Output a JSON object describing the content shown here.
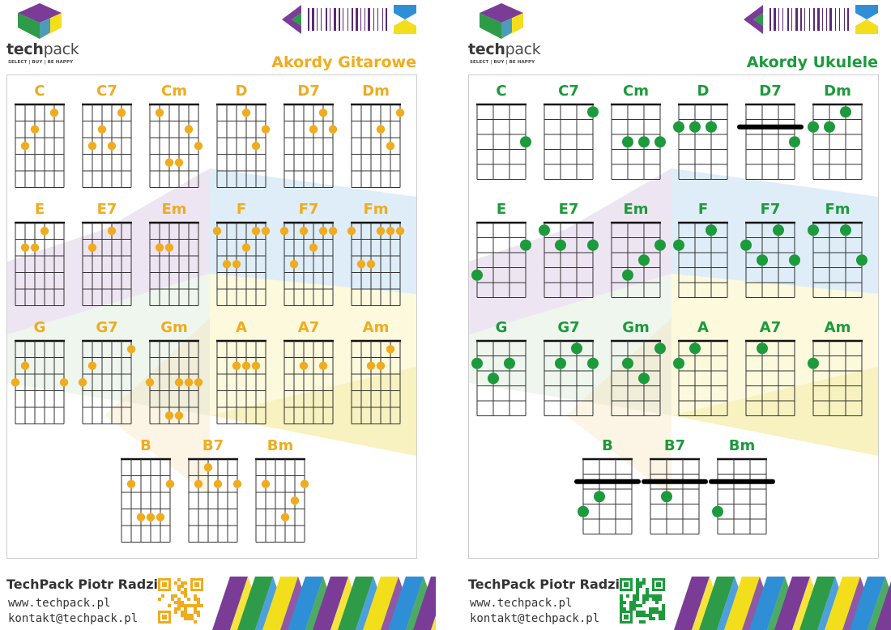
{
  "brand": {
    "logo_name": "techpack",
    "logo_strong": "tech",
    "logo_light": "pack",
    "tagline": "SELECT | BUY | BE HAPPY"
  },
  "colors": {
    "guitar_accent": "#f0ac1e",
    "ukulele_accent": "#1d9a3c",
    "purple": "#7b3c97",
    "green": "#2e9b48",
    "blue": "#2f8fd6",
    "yellow": "#f3de1c"
  },
  "sheets": [
    {
      "title": "Akordy Gitarowe",
      "instrument": "guitar",
      "color": "#f0ac1e",
      "chords": [
        {
          "name": "C",
          "dots": [
            [
              1,
              4
            ],
            [
              2,
              2
            ],
            [
              3,
              1
            ]
          ],
          "barres": []
        },
        {
          "name": "C7",
          "dots": [
            [
              1,
              4
            ],
            [
              2,
              2
            ],
            [
              3,
              1
            ],
            [
              3,
              3
            ]
          ],
          "barres": []
        },
        {
          "name": "Cm",
          "dots": [
            [
              3,
              5
            ],
            [
              4,
              2
            ],
            [
              4,
              3
            ],
            [
              1,
              1
            ],
            [
              2,
              4
            ]
          ],
          "barres": []
        },
        {
          "name": "D",
          "dots": [
            [
              1,
              3
            ],
            [
              2,
              5
            ],
            [
              3,
              4
            ]
          ],
          "barres": []
        },
        {
          "name": "D7",
          "dots": [
            [
              1,
              4
            ],
            [
              2,
              3
            ],
            [
              2,
              5
            ]
          ],
          "barres": []
        },
        {
          "name": "Dm",
          "dots": [
            [
              1,
              5
            ],
            [
              2,
              3
            ],
            [
              3,
              4
            ]
          ],
          "barres": []
        },
        {
          "name": "E",
          "dots": [
            [
              1,
              3
            ],
            [
              2,
              1
            ],
            [
              2,
              2
            ]
          ],
          "barres": []
        },
        {
          "name": "E7",
          "dots": [
            [
              1,
              3
            ],
            [
              2,
              1
            ]
          ],
          "barres": []
        },
        {
          "name": "Em",
          "dots": [
            [
              2,
              1
            ],
            [
              2,
              2
            ]
          ],
          "barres": []
        },
        {
          "name": "F",
          "dots": [
            [
              1,
              0
            ],
            [
              1,
              4
            ],
            [
              1,
              5
            ],
            [
              2,
              3
            ],
            [
              3,
              1
            ],
            [
              3,
              2
            ]
          ],
          "barres": []
        },
        {
          "name": "F7",
          "dots": [
            [
              1,
              0
            ],
            [
              1,
              2
            ],
            [
              1,
              4
            ],
            [
              1,
              5
            ],
            [
              2,
              3
            ],
            [
              3,
              1
            ]
          ],
          "barres": []
        },
        {
          "name": "Fm",
          "dots": [
            [
              1,
              0
            ],
            [
              1,
              3
            ],
            [
              1,
              4
            ],
            [
              1,
              5
            ],
            [
              3,
              1
            ],
            [
              3,
              2
            ]
          ],
          "barres": []
        },
        {
          "name": "G",
          "dots": [
            [
              2,
              1
            ],
            [
              3,
              0
            ],
            [
              3,
              5
            ]
          ],
          "barres": []
        },
        {
          "name": "G7",
          "dots": [
            [
              1,
              5
            ],
            [
              2,
              1
            ],
            [
              3,
              0
            ]
          ],
          "barres": []
        },
        {
          "name": "Gm",
          "dots": [
            [
              3,
              0
            ],
            [
              3,
              3
            ],
            [
              3,
              4
            ],
            [
              3,
              5
            ],
            [
              5,
              2
            ],
            [
              5,
              3
            ]
          ],
          "barres": []
        },
        {
          "name": "A",
          "dots": [
            [
              2,
              2
            ],
            [
              2,
              3
            ],
            [
              2,
              4
            ]
          ],
          "barres": []
        },
        {
          "name": "A7",
          "dots": [
            [
              2,
              2
            ],
            [
              2,
              4
            ]
          ],
          "barres": []
        },
        {
          "name": "Am",
          "dots": [
            [
              1,
              4
            ],
            [
              2,
              2
            ],
            [
              2,
              3
            ]
          ],
          "barres": []
        },
        {
          "name": "B",
          "dots": [
            [
              2,
              1
            ],
            [
              2,
              5
            ],
            [
              4,
              2
            ],
            [
              4,
              3
            ],
            [
              4,
              4
            ]
          ],
          "barres": []
        },
        {
          "name": "B7",
          "dots": [
            [
              1,
              2
            ],
            [
              2,
              1
            ],
            [
              2,
              3
            ],
            [
              2,
              5
            ]
          ],
          "barres": []
        },
        {
          "name": "Bm",
          "dots": [
            [
              2,
              1
            ],
            [
              2,
              5
            ],
            [
              3,
              4
            ],
            [
              4,
              3
            ]
          ],
          "barres": []
        }
      ]
    },
    {
      "title": "Akordy Ukulele",
      "instrument": "ukulele",
      "color": "#1d9a3c",
      "chords": [
        {
          "name": "C",
          "dots": [
            [
              3,
              3
            ]
          ],
          "barres": []
        },
        {
          "name": "C7",
          "dots": [
            [
              1,
              3
            ]
          ],
          "barres": []
        },
        {
          "name": "Cm",
          "dots": [
            [
              3,
              1
            ],
            [
              3,
              2
            ],
            [
              3,
              3
            ]
          ],
          "barres": []
        },
        {
          "name": "D",
          "dots": [
            [
              2,
              0
            ],
            [
              2,
              1
            ],
            [
              2,
              2
            ]
          ],
          "barres": []
        },
        {
          "name": "D7",
          "dots": [
            [
              3,
              3
            ]
          ],
          "barres": [
            2
          ]
        },
        {
          "name": "Dm",
          "dots": [
            [
              1,
              2
            ],
            [
              2,
              0
            ],
            [
              2,
              1
            ]
          ],
          "barres": []
        },
        {
          "name": "E",
          "dots": [
            [
              2,
              3
            ],
            [
              4,
              0
            ]
          ],
          "barres": []
        },
        {
          "name": "E7",
          "dots": [
            [
              1,
              0
            ],
            [
              2,
              1
            ],
            [
              2,
              3
            ]
          ],
          "barres": []
        },
        {
          "name": "Em",
          "dots": [
            [
              2,
              3
            ],
            [
              3,
              2
            ],
            [
              4,
              1
            ]
          ],
          "barres": []
        },
        {
          "name": "F",
          "dots": [
            [
              1,
              2
            ],
            [
              2,
              0
            ]
          ],
          "barres": []
        },
        {
          "name": "F7",
          "dots": [
            [
              1,
              2
            ],
            [
              2,
              0
            ],
            [
              3,
              1
            ],
            [
              3,
              3
            ]
          ],
          "barres": []
        },
        {
          "name": "Fm",
          "dots": [
            [
              1,
              0
            ],
            [
              1,
              2
            ],
            [
              3,
              3
            ]
          ],
          "barres": []
        },
        {
          "name": "G",
          "dots": [
            [
              2,
              0
            ],
            [
              2,
              2
            ],
            [
              3,
              1
            ]
          ],
          "barres": []
        },
        {
          "name": "G7",
          "dots": [
            [
              1,
              2
            ],
            [
              2,
              1
            ],
            [
              2,
              3
            ]
          ],
          "barres": []
        },
        {
          "name": "Gm",
          "dots": [
            [
              1,
              3
            ],
            [
              2,
              1
            ],
            [
              3,
              2
            ]
          ],
          "barres": []
        },
        {
          "name": "A",
          "dots": [
            [
              1,
              1
            ],
            [
              2,
              0
            ]
          ],
          "barres": []
        },
        {
          "name": "A7",
          "dots": [
            [
              1,
              1
            ]
          ],
          "barres": []
        },
        {
          "name": "Am",
          "dots": [
            [
              2,
              0
            ]
          ],
          "barres": []
        },
        {
          "name": "B",
          "dots": [
            [
              3,
              1
            ],
            [
              4,
              0
            ]
          ],
          "barres": [
            2
          ]
        },
        {
          "name": "B7",
          "dots": [
            [
              3,
              1
            ]
          ],
          "barres": [
            2
          ]
        },
        {
          "name": "Bm",
          "dots": [
            [
              4,
              0
            ]
          ],
          "barres": [
            2
          ]
        }
      ]
    }
  ],
  "footer": {
    "company": "TechPack Piotr Radzik",
    "website": "www.techpack.pl",
    "email": "kontakt@techpack.pl"
  },
  "icons": {
    "logo": "techpack-hexagon-logo-icon",
    "barcode": "barcode-arrows-icon",
    "qr": "qr-code-icon"
  }
}
